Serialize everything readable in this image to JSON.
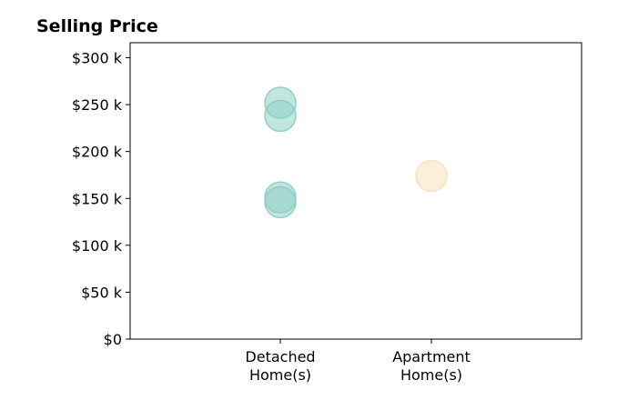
{
  "chart_data": {
    "type": "scatter",
    "title": "Selling Price",
    "xlabel": "",
    "ylabel": "",
    "categories": [
      "Detached\nHome(s)",
      "Apartment\nHome(s)"
    ],
    "y_tick_labels": [
      "$0",
      "$50 k",
      "$100 k",
      "$150 k",
      "$200 k",
      "$250 k",
      "$300 k"
    ],
    "y_ticks": [
      0,
      50000,
      100000,
      150000,
      200000,
      250000,
      300000
    ],
    "ylim": [
      0,
      316000
    ],
    "grid": false,
    "series": [
      {
        "category": "Detached\nHome(s)",
        "color": "#8ecfc4",
        "values": [
          252000,
          238000,
          151000,
          146000
        ]
      },
      {
        "category": "Apartment\nHome(s)",
        "color": "#f7e2bc",
        "values": [
          174000
        ]
      }
    ]
  }
}
